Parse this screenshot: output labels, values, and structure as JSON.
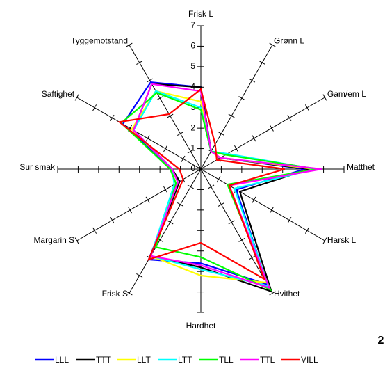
{
  "chart_data": {
    "type": "radar",
    "categories": [
      "Frisk L",
      "Grønn L",
      "Gam/em L",
      "Matthet",
      "Harsk L",
      "Hvithet",
      "Hardhet",
      "Frisk S",
      "Margarin S",
      "Sur smak",
      "Saftighet",
      "Tyggemotstand"
    ],
    "rlim": [
      0,
      7
    ],
    "rticks": [
      0,
      1,
      2,
      3,
      4,
      5,
      6,
      7
    ],
    "series": [
      {
        "name": "LLL",
        "color": "#0000ff",
        "values": [
          4.0,
          1.0,
          1.1,
          5.1,
          2.0,
          6.5,
          4.6,
          5.1,
          1.2,
          1.4,
          4.4,
          4.9
        ]
      },
      {
        "name": "TTT",
        "color": "#000000",
        "values": [
          4.0,
          1.0,
          1.1,
          5.3,
          2.2,
          6.9,
          4.8,
          4.9,
          1.2,
          1.4,
          3.8,
          4.8
        ]
      },
      {
        "name": "LLT",
        "color": "#ffff00",
        "values": [
          3.3,
          1.0,
          1.1,
          5.6,
          1.6,
          6.4,
          5.2,
          4.9,
          1.3,
          1.4,
          3.9,
          4.4
        ]
      },
      {
        "name": "LTT",
        "color": "#00ffff",
        "values": [
          3.0,
          1.0,
          1.5,
          5.6,
          1.9,
          6.6,
          4.9,
          4.9,
          1.5,
          1.4,
          3.8,
          4.4
        ]
      },
      {
        "name": "TLL",
        "color": "#00ff00",
        "values": [
          2.9,
          1.0,
          1.4,
          5.7,
          1.5,
          6.8,
          4.3,
          4.4,
          1.4,
          1.5,
          4.5,
          4.3
        ]
      },
      {
        "name": "TTL",
        "color": "#ff00ff",
        "values": [
          3.8,
          1.0,
          1.1,
          5.9,
          1.6,
          6.7,
          4.7,
          4.9,
          1.3,
          1.4,
          3.8,
          4.8
        ]
      },
      {
        "name": "VILL",
        "color": "#ff0000",
        "values": [
          3.9,
          1.4,
          0.9,
          4.1,
          1.6,
          6.2,
          3.6,
          5.1,
          1.0,
          1.05,
          4.6,
          3.1
        ]
      }
    ]
  },
  "page_number": "2"
}
